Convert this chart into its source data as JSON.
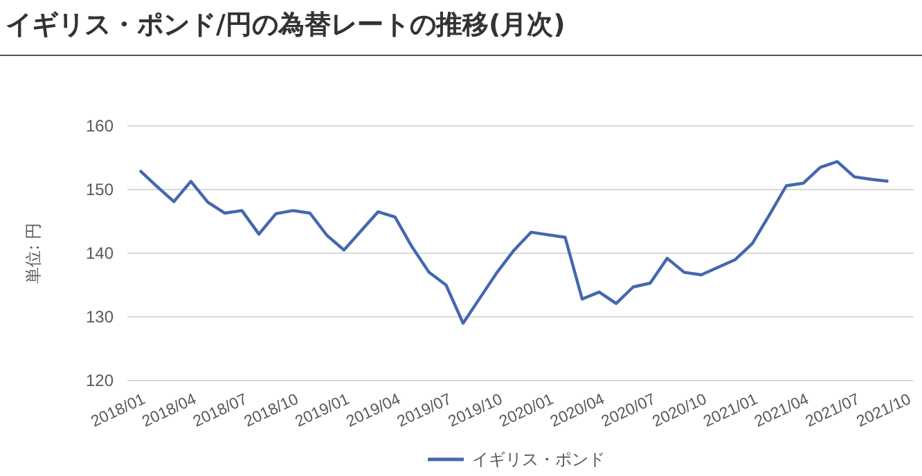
{
  "chart_data": {
    "type": "line",
    "title": "イギリス・ポンド/円の為替レートの推移(月次)",
    "ylabel": "単位: 円",
    "categories": [
      "2018/01",
      null,
      null,
      "2018/04",
      null,
      null,
      "2018/07",
      null,
      null,
      "2018/10",
      null,
      null,
      "2019/01",
      null,
      null,
      "2019/04",
      null,
      null,
      "2019/07",
      null,
      null,
      "2019/10",
      null,
      null,
      "2020/01",
      null,
      null,
      "2020/04",
      null,
      null,
      "2020/07",
      null,
      null,
      "2020/10",
      null,
      null,
      "2021/01",
      null,
      null,
      "2021/04",
      null,
      null,
      "2021/07",
      null,
      null,
      "2021/10"
    ],
    "series": [
      {
        "name": "イギリス・ポンド",
        "color": "#4468ae",
        "values": [
          153.0,
          150.5,
          148.1,
          151.3,
          148.0,
          146.3,
          146.7,
          143.0,
          146.2,
          146.7,
          146.3,
          142.8,
          140.5,
          143.5,
          146.5,
          145.7,
          141.0,
          137.0,
          135.0,
          129.0,
          133.0,
          137.0,
          140.5,
          143.3,
          142.9,
          142.5,
          132.8,
          133.9,
          132.1,
          134.7,
          135.3,
          139.2,
          137.0,
          136.6,
          137.8,
          139.0,
          141.5,
          146.0,
          150.6,
          151.0,
          153.5,
          154.4,
          152.0,
          151.6,
          151.3,
          null
        ]
      }
    ],
    "ylim": [
      120,
      160
    ],
    "yticks": [
      120,
      130,
      140,
      150,
      160
    ],
    "grid": "y",
    "legend": "bottom",
    "line_style": "solid",
    "marker": "none"
  }
}
